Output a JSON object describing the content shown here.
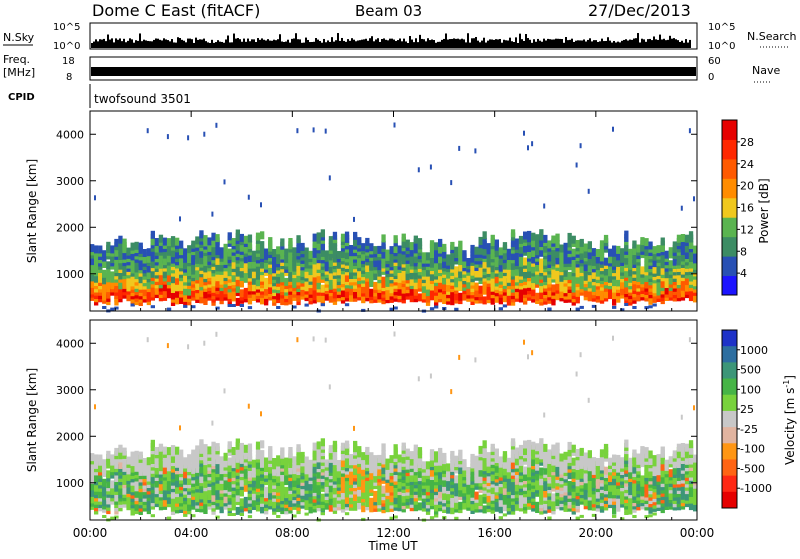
{
  "header": {
    "title": "Dome C East (fitACF)",
    "beam": "Beam 03",
    "date": "27/Dec/2013"
  },
  "top_panels": {
    "nsky_label": "N.Sky",
    "nsky_ticks": [
      "10^5",
      "10^0"
    ],
    "nsearch_label": "N.Search",
    "nsearch_ticks": [
      "10^5",
      "10^0"
    ],
    "freq_label": "Freq.",
    "freq_unit": "[MHz]",
    "freq_ticks": [
      "18",
      "8"
    ],
    "nave_label": "Nave",
    "nave_ticks": [
      "60",
      "0"
    ],
    "cpid_label": "CPID",
    "cpid_value": "twofsound 3501"
  },
  "colors": {
    "power_scale": [
      "#1c14ff",
      "#2850b4",
      "#3c8c64",
      "#5ab450",
      "#f0c81e",
      "#ff8c00",
      "#ff5a00",
      "#ff2800",
      "#e60000"
    ],
    "velocity_scale": [
      "#1e32c8",
      "#2d6ea0",
      "#3c9678",
      "#46b446",
      "#78d23c",
      "#c8c8c8",
      "#e1b4a0",
      "#ff9614",
      "#ff6414",
      "#ff2814",
      "#e60000"
    ]
  },
  "chart_data": [
    {
      "type": "heatmap",
      "name": "power",
      "ylabel": "Slant Range [km]",
      "yticks": [
        "1000",
        "2000",
        "3000",
        "4000"
      ],
      "ylim": [
        200,
        4500
      ],
      "xlim": [
        "00:00",
        "24:00"
      ],
      "colorbar_label": "Power [dB]",
      "colorbar_ticks": [
        "4",
        "8",
        "12",
        "16",
        "20",
        "24",
        "28"
      ],
      "colorbar_range": [
        0,
        32
      ]
    },
    {
      "type": "heatmap",
      "name": "velocity",
      "ylabel": "Slant Range [km]",
      "yticks": [
        "1000",
        "2000",
        "3000",
        "4000"
      ],
      "ylim": [
        200,
        4500
      ],
      "xlim": [
        "00:00",
        "24:00"
      ],
      "colorbar_label": "Velocity [m s",
      "colorbar_label_sup": "-1",
      "colorbar_label_end": "]",
      "colorbar_ticks": [
        "1000",
        "500",
        "100",
        "25",
        "-25",
        "-100",
        "-500",
        "-1000"
      ]
    }
  ],
  "xaxis": {
    "label": "Time UT",
    "ticks": [
      "00:00",
      "04:00",
      "08:00",
      "12:00",
      "16:00",
      "20:00",
      "00:00"
    ]
  }
}
